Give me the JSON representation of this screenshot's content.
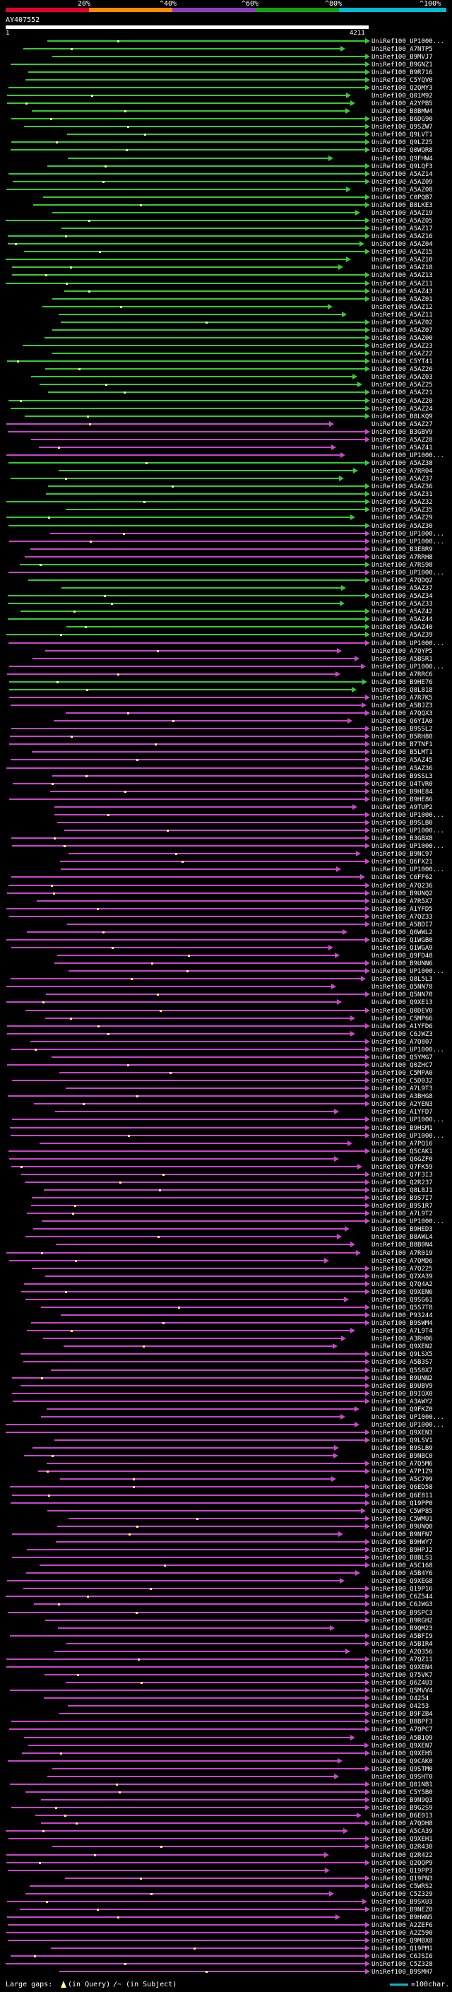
{
  "header": {
    "scale_labels": [
      "20%",
      "^40%",
      "^60%",
      "^80%",
      "^100%"
    ],
    "scale_colors": [
      "#e4002b",
      "#ff8c00",
      "#8b3fbf",
      "#13a10e",
      "#00bcd4"
    ]
  },
  "query": {
    "id": "AY407552",
    "start": "1",
    "end": "4211"
  },
  "colors": {
    "green": "#33cc33",
    "magenta": "#cc44cc",
    "dot": "#ffff88",
    "bg": "#000000"
  },
  "hits": [
    {
      "label": "UniRef100_UP1000...",
      "color": "green"
    },
    {
      "label": "UniRef100_A7NTP5",
      "color": "green"
    },
    {
      "label": "UniRef100_B9MVJ7",
      "color": "green"
    },
    {
      "label": "UniRef100_B9GNZ1",
      "color": "green"
    },
    {
      "label": "UniRef100_B9R716",
      "color": "green"
    },
    {
      "label": "UniRef100_C5YQV0",
      "color": "green"
    },
    {
      "label": "UniRef100_Q2QMY3",
      "color": "green"
    },
    {
      "label": "UniRef100_Q01M92",
      "color": "green"
    },
    {
      "label": "UniRef100_A2YPB5",
      "color": "green"
    },
    {
      "label": "UniRef100_B8BMW4",
      "color": "green"
    },
    {
      "label": "UniRef100_B6DG90",
      "color": "green"
    },
    {
      "label": "UniRef100_Q9SZW7",
      "color": "green"
    },
    {
      "label": "UniRef100_Q9LVT1",
      "color": "green"
    },
    {
      "label": "UniRef100_Q9LZ25",
      "color": "green"
    },
    {
      "label": "UniRef100_Q0WQR8",
      "color": "green"
    },
    {
      "label": "UniRef100_Q9FHW4",
      "color": "green"
    },
    {
      "label": "UniRef100_Q9LQF3",
      "color": "green"
    },
    {
      "label": "UniRef100_A5AZ14",
      "color": "green"
    },
    {
      "label": "UniRef100_A5AZ09",
      "color": "green"
    },
    {
      "label": "UniRef100_A5AZ08",
      "color": "green"
    },
    {
      "label": "UniRef100_C0PQB7",
      "color": "green"
    },
    {
      "label": "UniRef100_B8LKE3",
      "color": "green"
    },
    {
      "label": "UniRef100_A5AZ19",
      "color": "green"
    },
    {
      "label": "UniRef100_A5AZ05",
      "color": "green"
    },
    {
      "label": "UniRef100_A5AZ17",
      "color": "green"
    },
    {
      "label": "UniRef100_A5AZ16",
      "color": "green"
    },
    {
      "label": "UniRef100_A5AZ04",
      "color": "green"
    },
    {
      "label": "UniRef100_A5AZ15",
      "color": "green"
    },
    {
      "label": "UniRef100_A5AZ10",
      "color": "green"
    },
    {
      "label": "UniRef100_A5AZ18",
      "color": "green"
    },
    {
      "label": "UniRef100_A5AZ13",
      "color": "green"
    },
    {
      "label": "UniRef100_A5AZ11",
      "color": "green"
    },
    {
      "label": "UniRef100_A5AZ43",
      "color": "green"
    },
    {
      "label": "UniRef100_A5AZ01",
      "color": "green"
    },
    {
      "label": "UniRef100_A5AZ12",
      "color": "green"
    },
    {
      "label": "UniRef100_A5AZ11",
      "color": "green"
    },
    {
      "label": "UniRef100_A5AZ02",
      "color": "green"
    },
    {
      "label": "UniRef100_A5AZ07",
      "color": "green"
    },
    {
      "label": "UniRef100_A5AZ00",
      "color": "green"
    },
    {
      "label": "UniRef100_A5AZ23",
      "color": "green"
    },
    {
      "label": "UniRef100_A5AZ22",
      "color": "green"
    },
    {
      "label": "UniRef100_C5YT41",
      "color": "green"
    },
    {
      "label": "UniRef100_A5AZ26",
      "color": "green"
    },
    {
      "label": "UniRef100_A5AZ03",
      "color": "green"
    },
    {
      "label": "UniRef100_A5AZ25",
      "color": "green"
    },
    {
      "label": "UniRef100_A5AZ21",
      "color": "green"
    },
    {
      "label": "UniRef100_A5AZ20",
      "color": "green"
    },
    {
      "label": "UniRef100_A5AZ24",
      "color": "green"
    },
    {
      "label": "UniRef100_B8LKQ9",
      "color": "green"
    },
    {
      "label": "UniRef100_A5AZ27",
      "color": "magenta"
    },
    {
      "label": "UniRef100_B3GBV9",
      "color": "magenta"
    },
    {
      "label": "UniRef100_A5AZ28",
      "color": "magenta"
    },
    {
      "label": "UniRef100_A5AZ41",
      "color": "magenta"
    },
    {
      "label": "UniRef100_UP1000...",
      "color": "magenta"
    },
    {
      "label": "UniRef100_A5AZ38",
      "color": "green"
    },
    {
      "label": "UniRef100_A7RR04",
      "color": "green"
    },
    {
      "label": "UniRef100_A5AZ37",
      "color": "green"
    },
    {
      "label": "UniRef100_A5AZ36",
      "color": "green"
    },
    {
      "label": "UniRef100_A5AZ31",
      "color": "green"
    },
    {
      "label": "UniRef100_A5AZ32",
      "color": "green"
    },
    {
      "label": "UniRef100_A5AZ35",
      "color": "green"
    },
    {
      "label": "UniRef100_A5AZ29",
      "color": "green"
    },
    {
      "label": "UniRef100_A5AZ30",
      "color": "green"
    },
    {
      "label": "UniRef100_UP1000...",
      "color": "magenta"
    },
    {
      "label": "UniRef100_UP1000...",
      "color": "magenta"
    },
    {
      "label": "UniRef100_B3EBR9",
      "color": "magenta"
    },
    {
      "label": "UniRef100_A7RRH8",
      "color": "magenta"
    },
    {
      "label": "UniRef100_A7RS98",
      "color": "green"
    },
    {
      "label": "UniRef100_UP1000...",
      "color": "magenta"
    },
    {
      "label": "UniRef100_A7QDQ2",
      "color": "green"
    },
    {
      "label": "UniRef100_A5AZ37",
      "color": "green"
    },
    {
      "label": "UniRef100_A5AZ34",
      "color": "green"
    },
    {
      "label": "UniRef100_A5AZ33",
      "color": "green"
    },
    {
      "label": "UniRef100_A5AZ42",
      "color": "green"
    },
    {
      "label": "UniRef100_A5AZ44",
      "color": "green"
    },
    {
      "label": "UniRef100_A5AZ40",
      "color": "green"
    },
    {
      "label": "UniRef100_A5AZ39",
      "color": "green"
    },
    {
      "label": "UniRef100_UP1000...",
      "color": "magenta"
    },
    {
      "label": "UniRef100_A7QYP5",
      "color": "magenta"
    },
    {
      "label": "UniRef100_A5BSR1",
      "color": "magenta"
    },
    {
      "label": "UniRef100_UP1000...",
      "color": "magenta"
    },
    {
      "label": "UniRef100_A7RRC6",
      "color": "magenta"
    },
    {
      "label": "UniRef100_B9HE76",
      "color": "green"
    },
    {
      "label": "UniRef100_Q8L818",
      "color": "green"
    },
    {
      "label": "UniRef100_A7R7K5",
      "color": "magenta"
    },
    {
      "label": "UniRef100_A5BJZ3",
      "color": "magenta"
    },
    {
      "label": "UniRef100_A7QQX3",
      "color": "magenta"
    },
    {
      "label": "UniRef100_Q6YIA0",
      "color": "magenta"
    },
    {
      "label": "UniRef100_B9SSL2",
      "color": "magenta"
    },
    {
      "label": "UniRef100_B5RH80",
      "color": "magenta"
    },
    {
      "label": "UniRef100_B7TNF1",
      "color": "magenta"
    },
    {
      "label": "UniRef100_B5LMT1",
      "color": "magenta"
    },
    {
      "label": "UniRef100_A5AZ45",
      "color": "magenta"
    },
    {
      "label": "UniRef100_A5AZ36",
      "color": "magenta"
    },
    {
      "label": "UniRef100_B9SSL3",
      "color": "magenta"
    },
    {
      "label": "UniRef100_Q4TVR0",
      "color": "magenta"
    },
    {
      "label": "UniRef100_B9HE84",
      "color": "magenta"
    },
    {
      "label": "UniRef100_B9HE86",
      "color": "magenta"
    },
    {
      "label": "UniRef100_A9TUP2",
      "color": "magenta"
    },
    {
      "label": "UniRef100_UP1000...",
      "color": "magenta"
    },
    {
      "label": "UniRef100_B9SLB0",
      "color": "magenta"
    },
    {
      "label": "UniRef100_UP1000...",
      "color": "magenta"
    },
    {
      "label": "UniRef100_B3GBX8",
      "color": "magenta"
    },
    {
      "label": "UniRef100_UP1000...",
      "color": "magenta"
    },
    {
      "label": "UniRef100_B9NC97",
      "color": "magenta"
    },
    {
      "label": "UniRef100_Q6FX21",
      "color": "magenta"
    },
    {
      "label": "UniRef100_UP1000...",
      "color": "magenta"
    },
    {
      "label": "UniRef100_C6FF62",
      "color": "magenta"
    },
    {
      "label": "UniRef100_A7Q236",
      "color": "magenta"
    },
    {
      "label": "UniRef100_B9UNQ2",
      "color": "magenta"
    },
    {
      "label": "UniRef100_A7R5X7",
      "color": "magenta"
    },
    {
      "label": "UniRef100_A1YFD5",
      "color": "magenta"
    },
    {
      "label": "UniRef100_A7QZ33",
      "color": "magenta"
    },
    {
      "label": "UniRef100_A5BDI7",
      "color": "magenta"
    },
    {
      "label": "UniRef100_Q6WWL2",
      "color": "magenta"
    },
    {
      "label": "UniRef100_Q1WGB0",
      "color": "magenta"
    },
    {
      "label": "UniRef100_Q1WGA9",
      "color": "magenta"
    },
    {
      "label": "UniRef100_Q9FD48",
      "color": "magenta"
    },
    {
      "label": "UniRef100_B9UNN6",
      "color": "magenta"
    },
    {
      "label": "UniRef100_UP1000...",
      "color": "magenta"
    },
    {
      "label": "UniRef100_Q8L5L3",
      "color": "magenta"
    },
    {
      "label": "UniRef100_Q5NN78",
      "color": "magenta"
    },
    {
      "label": "UniRef100_Q5NN70",
      "color": "magenta"
    },
    {
      "label": "UniRef100_Q9XE13",
      "color": "magenta"
    },
    {
      "label": "UniRef100_Q0DEV0",
      "color": "magenta"
    },
    {
      "label": "UniRef100_C5MP66",
      "color": "magenta"
    },
    {
      "label": "UniRef100_A1YFD6",
      "color": "magenta"
    },
    {
      "label": "UniRef100_C6JWZ3",
      "color": "magenta"
    },
    {
      "label": "UniRef100_A7Q807",
      "color": "magenta"
    },
    {
      "label": "UniRef100_UP1000...",
      "color": "magenta"
    },
    {
      "label": "UniRef100_Q5YMG7",
      "color": "magenta"
    },
    {
      "label": "UniRef100_Q0ZHC7",
      "color": "magenta"
    },
    {
      "label": "UniRef100_C5MPA0",
      "color": "magenta"
    },
    {
      "label": "UniRef100_C5D032",
      "color": "magenta"
    },
    {
      "label": "UniRef100_A7L9T3",
      "color": "magenta"
    },
    {
      "label": "UniRef100_A3BHG8",
      "color": "magenta"
    },
    {
      "label": "UniRef100_A2YEN3",
      "color": "magenta"
    },
    {
      "label": "UniRef100_A1YFD7",
      "color": "magenta"
    },
    {
      "label": "UniRef100_UP1000...",
      "color": "magenta"
    },
    {
      "label": "UniRef100_B9HSM1",
      "color": "magenta"
    },
    {
      "label": "UniRef100_UP1000...",
      "color": "magenta"
    },
    {
      "label": "UniRef100_A7PQ16",
      "color": "magenta"
    },
    {
      "label": "UniRef100_Q5CAK1",
      "color": "magenta"
    },
    {
      "label": "UniRef100_Q6GZF0",
      "color": "magenta"
    },
    {
      "label": "UniRef100_Q7FK59",
      "color": "magenta"
    },
    {
      "label": "UniRef100_Q7F3I3",
      "color": "magenta"
    },
    {
      "label": "UniRef100_Q2R237",
      "color": "magenta"
    },
    {
      "label": "UniRef100_Q8L8J1",
      "color": "magenta"
    },
    {
      "label": "UniRef100_B9S7I7",
      "color": "magenta"
    },
    {
      "label": "UniRef100_B9S1R7",
      "color": "magenta"
    },
    {
      "label": "UniRef100_A7L9T2",
      "color": "magenta"
    },
    {
      "label": "UniRef100_UP1000...",
      "color": "magenta"
    },
    {
      "label": "UniRef100_B9HED3",
      "color": "magenta"
    },
    {
      "label": "UniRef100_B8AWL4",
      "color": "magenta"
    },
    {
      "label": "UniRef100_B8B0N4",
      "color": "magenta"
    },
    {
      "label": "UniRef100_A7R019",
      "color": "magenta"
    },
    {
      "label": "UniRef100_A7QMD6",
      "color": "magenta"
    },
    {
      "label": "UniRef100_A7Q225",
      "color": "magenta"
    },
    {
      "label": "UniRef100_Q7XA39",
      "color": "magenta"
    },
    {
      "label": "UniRef100_Q7Q4A2",
      "color": "magenta"
    },
    {
      "label": "UniRef100_Q9XEN6",
      "color": "magenta"
    },
    {
      "label": "UniRef100_Q9SG61",
      "color": "magenta"
    },
    {
      "label": "UniRef100_Q5S7T8",
      "color": "magenta"
    },
    {
      "label": "UniRef100_P93244",
      "color": "magenta"
    },
    {
      "label": "UniRef100_B9SWM4",
      "color": "magenta"
    },
    {
      "label": "UniRef100_A7L9T4",
      "color": "magenta"
    },
    {
      "label": "UniRef100_A3RH06",
      "color": "magenta"
    },
    {
      "label": "UniRef100_Q9XEN2",
      "color": "magenta"
    },
    {
      "label": "UniRef100_Q9LSX5",
      "color": "magenta"
    },
    {
      "label": "UniRef100_A5B3S7",
      "color": "magenta"
    },
    {
      "label": "UniRef100_Q5S8X7",
      "color": "magenta"
    },
    {
      "label": "UniRef100_B9UNN2",
      "color": "magenta"
    },
    {
      "label": "UniRef100_B9UBV9",
      "color": "magenta"
    },
    {
      "label": "UniRef100_B9IQX0",
      "color": "magenta"
    },
    {
      "label": "UniRef100_A3AWY2",
      "color": "magenta"
    },
    {
      "label": "UniRef100_Q9FKZ0",
      "color": "magenta"
    },
    {
      "label": "UniRef100_UP1000...",
      "color": "magenta"
    },
    {
      "label": "UniRef100_UP1000...",
      "color": "magenta"
    },
    {
      "label": "UniRef100_Q9XEN3",
      "color": "magenta"
    },
    {
      "label": "UniRef100_Q9LSV1",
      "color": "magenta"
    },
    {
      "label": "UniRef100_B9SLB9",
      "color": "magenta"
    },
    {
      "label": "UniRef100_B9NBC0",
      "color": "magenta"
    },
    {
      "label": "UniRef100_A7Q5M6",
      "color": "magenta"
    },
    {
      "label": "UniRef100_A7P1Z9",
      "color": "magenta"
    },
    {
      "label": "UniRef100_A5C799",
      "color": "magenta"
    },
    {
      "label": "UniRef100_Q6ED58",
      "color": "magenta"
    },
    {
      "label": "UniRef100_Q6E811",
      "color": "magenta"
    },
    {
      "label": "UniRef100_Q19PP0",
      "color": "magenta"
    },
    {
      "label": "UniRef100_C5WP85",
      "color": "magenta"
    },
    {
      "label": "UniRef100_C5WMU1",
      "color": "magenta"
    },
    {
      "label": "UniRef100_B9UNQ0",
      "color": "magenta"
    },
    {
      "label": "UniRef100_B9NFN7",
      "color": "magenta"
    },
    {
      "label": "UniRef100_B9HWY7",
      "color": "magenta"
    },
    {
      "label": "UniRef100_B9HPJ2",
      "color": "magenta"
    },
    {
      "label": "UniRef100_B8BLS1",
      "color": "magenta"
    },
    {
      "label": "UniRef100_A5C168",
      "color": "magenta"
    },
    {
      "label": "UniRef100_A5B4Y6",
      "color": "magenta"
    },
    {
      "label": "UniRef100_Q9XEG8",
      "color": "magenta"
    },
    {
      "label": "UniRef100_Q19P16",
      "color": "magenta"
    },
    {
      "label": "UniRef100_C6Z544",
      "color": "magenta"
    },
    {
      "label": "UniRef100_C6JWG3",
      "color": "magenta"
    },
    {
      "label": "UniRef100_B9SPC3",
      "color": "magenta"
    },
    {
      "label": "UniRef100_B9RGH2",
      "color": "magenta"
    },
    {
      "label": "UniRef100_B9QM23",
      "color": "magenta"
    },
    {
      "label": "UniRef100_A5BFI9",
      "color": "magenta"
    },
    {
      "label": "UniRef100_A5BIR4",
      "color": "magenta"
    },
    {
      "label": "UniRef100_A2Q356",
      "color": "magenta"
    },
    {
      "label": "UniRef100_A7QZ11",
      "color": "magenta"
    },
    {
      "label": "UniRef100_Q9XEN4",
      "color": "magenta"
    },
    {
      "label": "UniRef100_Q75VK7",
      "color": "magenta"
    },
    {
      "label": "UniRef100_Q6Z4U3",
      "color": "magenta"
    },
    {
      "label": "UniRef100_Q5MVV4",
      "color": "magenta"
    },
    {
      "label": "UniRef100_O4254",
      "color": "magenta"
    },
    {
      "label": "UniRef100_O4253",
      "color": "magenta"
    },
    {
      "label": "UniRef100_B9FZB4",
      "color": "magenta"
    },
    {
      "label": "UniRef100_B8BPF3",
      "color": "magenta"
    },
    {
      "label": "UniRef100_A7QPC7",
      "color": "magenta"
    },
    {
      "label": "UniRef100_A5B1Q9",
      "color": "magenta"
    },
    {
      "label": "UniRef100_Q9XEN7",
      "color": "magenta"
    },
    {
      "label": "UniRef100_Q9XEH5",
      "color": "magenta"
    },
    {
      "label": "UniRef100_Q9CAK0",
      "color": "magenta"
    },
    {
      "label": "UniRef100_Q9STM0",
      "color": "magenta"
    },
    {
      "label": "UniRef100_Q9SHT0",
      "color": "magenta"
    },
    {
      "label": "UniRef100_Q01NB1",
      "color": "magenta"
    },
    {
      "label": "UniRef100_C5Y5B0",
      "color": "magenta"
    },
    {
      "label": "UniRef100_B9N9Q3",
      "color": "magenta"
    },
    {
      "label": "UniRef100_B9G2S9",
      "color": "magenta"
    },
    {
      "label": "UniRef100_B6E013",
      "color": "magenta"
    },
    {
      "label": "UniRef100_A7QDH8",
      "color": "magenta"
    },
    {
      "label": "UniRef100_A5CA39",
      "color": "magenta"
    },
    {
      "label": "UniRef100_Q9XEH1",
      "color": "magenta"
    },
    {
      "label": "UniRef100_Q2R430",
      "color": "magenta"
    },
    {
      "label": "UniRef100_Q2R422",
      "color": "magenta"
    },
    {
      "label": "UniRef100_Q2QQP9",
      "color": "magenta"
    },
    {
      "label": "UniRef100_Q19PP3",
      "color": "magenta"
    },
    {
      "label": "UniRef100_Q19PN3",
      "color": "magenta"
    },
    {
      "label": "UniRef100_C5WRS2",
      "color": "magenta"
    },
    {
      "label": "UniRef100_C5Z329",
      "color": "magenta"
    },
    {
      "label": "UniRef100_B9SKU3",
      "color": "magenta"
    },
    {
      "label": "UniRef100_B9NEZ0",
      "color": "magenta"
    },
    {
      "label": "UniRef100_B9HWN5",
      "color": "magenta"
    },
    {
      "label": "UniRef100_A2ZEF6",
      "color": "magenta"
    },
    {
      "label": "UniRef100_A2Z590",
      "color": "magenta"
    },
    {
      "label": "UniRef100_Q9MBX8",
      "color": "magenta"
    },
    {
      "label": "UniRef100_Q19PM1",
      "color": "magenta"
    },
    {
      "label": "UniRef100_C6JSI6",
      "color": "magenta"
    },
    {
      "label": "UniRef100_C5Z328",
      "color": "magenta"
    },
    {
      "label": "UniRef100_B9SMH7",
      "color": "magenta"
    }
  ],
  "legend": {
    "large_gaps": "Large gaps:",
    "in_query": "(in Query)",
    "in_subject": "/~ (in Subject)",
    "scale": "=100char."
  }
}
